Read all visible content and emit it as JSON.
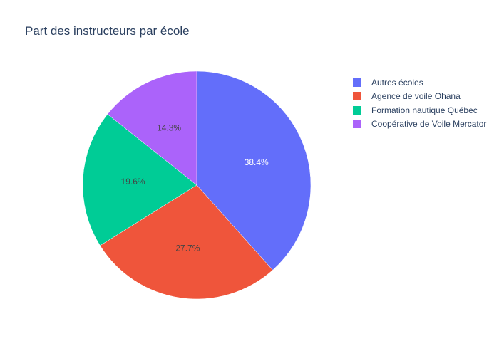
{
  "chart_data": {
    "type": "pie",
    "title": "Part des instructeurs par école",
    "categories": [
      "Autres écoles",
      "Agence de voile Ohana",
      "Formation nautique Québec",
      "Coopérative de Voile Mercator"
    ],
    "values": [
      38.4,
      27.7,
      19.6,
      14.3
    ],
    "value_labels": [
      "38.4%",
      "27.7%",
      "19.6%",
      "14.3%"
    ],
    "colors": [
      "#636efa",
      "#ef553b",
      "#00cc96",
      "#ab63fa"
    ],
    "label_colors": [
      "#ffffff",
      "#444444",
      "#444444",
      "#444444"
    ],
    "legend_position": "top-right",
    "start_angle": "12 o'clock",
    "direction": "clockwise"
  }
}
